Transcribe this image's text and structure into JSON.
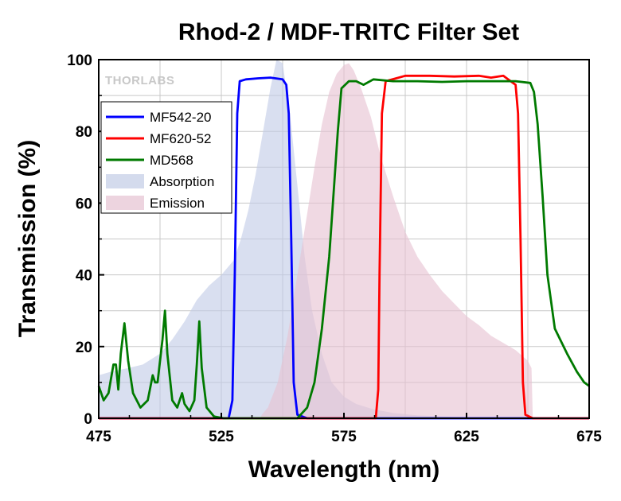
{
  "chart_data": {
    "type": "line",
    "title": "Rhod-2 / MDF-TRITC Filter Set",
    "xlabel": "Wavelength (nm)",
    "ylabel": "Transmission (%)",
    "xlim": [
      475,
      675
    ],
    "ylim": [
      0,
      100
    ],
    "x_ticks": [
      475,
      525,
      575,
      625,
      675
    ],
    "x_tick_labels": [
      "475",
      "525",
      "575",
      "625",
      "675"
    ],
    "y_ticks": [
      0,
      20,
      40,
      60,
      80,
      100
    ],
    "y_tick_labels": [
      "0",
      "20",
      "40",
      "60",
      "80",
      "100"
    ],
    "grid": true,
    "legend_position": "top-left",
    "watermark": "THORLABS",
    "series": [
      {
        "name": "MF542-20",
        "kind": "line",
        "color": "#0000ff",
        "points": [
          [
            475,
            0
          ],
          [
            528,
            0
          ],
          [
            529.5,
            5
          ],
          [
            530.5,
            40
          ],
          [
            531.5,
            85
          ],
          [
            532.5,
            94
          ],
          [
            535,
            94.5
          ],
          [
            540,
            94.8
          ],
          [
            545,
            95
          ],
          [
            550,
            94.5
          ],
          [
            551.5,
            93
          ],
          [
            552.5,
            85
          ],
          [
            553.5,
            50
          ],
          [
            554.5,
            10
          ],
          [
            556,
            1
          ],
          [
            560,
            0
          ],
          [
            675,
            0
          ]
        ]
      },
      {
        "name": "MF620-52",
        "kind": "line",
        "color": "#ff0000",
        "points": [
          [
            475,
            0
          ],
          [
            588,
            0
          ],
          [
            589,
            8
          ],
          [
            589.5,
            40
          ],
          [
            590.5,
            85
          ],
          [
            592,
            94
          ],
          [
            600,
            95.5
          ],
          [
            610,
            95.5
          ],
          [
            620,
            95.3
          ],
          [
            630,
            95.5
          ],
          [
            635,
            95
          ],
          [
            640,
            95.5
          ],
          [
            643,
            94
          ],
          [
            645,
            93
          ],
          [
            646,
            85
          ],
          [
            647,
            50
          ],
          [
            648,
            10
          ],
          [
            649,
            1
          ],
          [
            652,
            0
          ],
          [
            675,
            0
          ]
        ]
      },
      {
        "name": "MD568",
        "kind": "line",
        "color": "#007a00",
        "points": [
          [
            475,
            9
          ],
          [
            477,
            5
          ],
          [
            479,
            7
          ],
          [
            481,
            15
          ],
          [
            482,
            15
          ],
          [
            483,
            8
          ],
          [
            484,
            18
          ],
          [
            485.5,
            26.5
          ],
          [
            487,
            16
          ],
          [
            489,
            7
          ],
          [
            492,
            3
          ],
          [
            495,
            5
          ],
          [
            497,
            12
          ],
          [
            498,
            10
          ],
          [
            499,
            10
          ],
          [
            501,
            22
          ],
          [
            502,
            30
          ],
          [
            503,
            18
          ],
          [
            505,
            5
          ],
          [
            507,
            3
          ],
          [
            509,
            7
          ],
          [
            510,
            4
          ],
          [
            512,
            2
          ],
          [
            514,
            5
          ],
          [
            515,
            15
          ],
          [
            516,
            27
          ],
          [
            517,
            14
          ],
          [
            519,
            3
          ],
          [
            522,
            0.5
          ],
          [
            526,
            0
          ],
          [
            556,
            0
          ],
          [
            560,
            3
          ],
          [
            563,
            10
          ],
          [
            566,
            25
          ],
          [
            569,
            45
          ],
          [
            571,
            65
          ],
          [
            572.5,
            80
          ],
          [
            574,
            92
          ],
          [
            577,
            94
          ],
          [
            580,
            94
          ],
          [
            583,
            93
          ],
          [
            587,
            94.5
          ],
          [
            595,
            94
          ],
          [
            605,
            94
          ],
          [
            615,
            93.8
          ],
          [
            625,
            94
          ],
          [
            635,
            94
          ],
          [
            645,
            94
          ],
          [
            651,
            93.5
          ],
          [
            652.5,
            91
          ],
          [
            654,
            82
          ],
          [
            656,
            62
          ],
          [
            658,
            40
          ],
          [
            661,
            25
          ],
          [
            666,
            18
          ],
          [
            670,
            13
          ],
          [
            673,
            10
          ],
          [
            675,
            9
          ]
        ]
      },
      {
        "name": "Absorption",
        "kind": "area",
        "color": "#c2cce6",
        "points": [
          [
            475,
            12
          ],
          [
            480,
            13
          ],
          [
            487,
            14
          ],
          [
            493,
            15
          ],
          [
            500,
            18
          ],
          [
            505,
            22
          ],
          [
            510,
            27
          ],
          [
            515,
            33
          ],
          [
            520,
            37
          ],
          [
            525,
            40
          ],
          [
            530,
            44
          ],
          [
            533,
            50
          ],
          [
            536,
            58
          ],
          [
            539,
            68
          ],
          [
            542,
            80
          ],
          [
            545,
            92
          ],
          [
            547.5,
            100
          ],
          [
            550,
            99
          ],
          [
            553,
            85
          ],
          [
            556,
            65
          ],
          [
            559,
            45
          ],
          [
            562,
            30
          ],
          [
            566,
            18
          ],
          [
            570,
            10
          ],
          [
            575,
            6
          ],
          [
            580,
            4
          ],
          [
            587,
            2.5
          ],
          [
            595,
            1.5
          ],
          [
            605,
            0.8
          ],
          [
            620,
            0.4
          ],
          [
            640,
            0.2
          ],
          [
            655,
            0
          ]
        ]
      },
      {
        "name": "Emission",
        "kind": "area",
        "color": "#e6c2d2",
        "points": [
          [
            541,
            0
          ],
          [
            541.5,
            1
          ],
          [
            544,
            3
          ],
          [
            548,
            10
          ],
          [
            552,
            23
          ],
          [
            556,
            40
          ],
          [
            560,
            57
          ],
          [
            563,
            70
          ],
          [
            566,
            82
          ],
          [
            569,
            91
          ],
          [
            572,
            96
          ],
          [
            575,
            98.5
          ],
          [
            577,
            99
          ],
          [
            579,
            97
          ],
          [
            582,
            92
          ],
          [
            586,
            84
          ],
          [
            590,
            73
          ],
          [
            595,
            62
          ],
          [
            600,
            52
          ],
          [
            605,
            45
          ],
          [
            610,
            40
          ],
          [
            615,
            35.5
          ],
          [
            620,
            32
          ],
          [
            625,
            28.5
          ],
          [
            630,
            26
          ],
          [
            635,
            23
          ],
          [
            640,
            21
          ],
          [
            645,
            19
          ],
          [
            650,
            16
          ],
          [
            651.5,
            14
          ],
          [
            652,
            0
          ]
        ]
      }
    ]
  }
}
